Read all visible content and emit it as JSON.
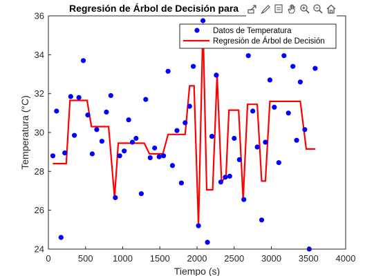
{
  "chart_data": {
    "type": "scatter",
    "title": "Regresión de Árbol de Decisión para",
    "xlabel": "Tiempo (s)",
    "ylabel": "Temperatura (°C)",
    "xlim": [
      0,
      4000
    ],
    "ylim": [
      24,
      36
    ],
    "xticks": [
      0,
      500,
      1000,
      1500,
      2000,
      2500,
      3000,
      3500,
      4000
    ],
    "yticks": [
      24,
      26,
      28,
      30,
      32,
      34,
      36
    ],
    "grid": false,
    "legend_position": "top-right",
    "series": [
      {
        "name": "Datos de Temperatura",
        "kind": "scatter",
        "color": "#0000ff",
        "points": [
          [
            60,
            28.8
          ],
          [
            110,
            31.1
          ],
          [
            170,
            24.6
          ],
          [
            220,
            28.95
          ],
          [
            300,
            31.85
          ],
          [
            350,
            29.85
          ],
          [
            410,
            31.8
          ],
          [
            470,
            33.7
          ],
          [
            530,
            30.9
          ],
          [
            590,
            28.9
          ],
          [
            650,
            30.15
          ],
          [
            720,
            29.55
          ],
          [
            780,
            31.05
          ],
          [
            840,
            31.9
          ],
          [
            900,
            26.65
          ],
          [
            960,
            28.8
          ],
          [
            1020,
            29.05
          ],
          [
            1080,
            30.65
          ],
          [
            1130,
            29.5
          ],
          [
            1180,
            29.7
          ],
          [
            1250,
            26.85
          ],
          [
            1310,
            31.7
          ],
          [
            1370,
            28.7
          ],
          [
            1430,
            29.2
          ],
          [
            1490,
            28.75
          ],
          [
            1550,
            28.8
          ],
          [
            1610,
            33.15
          ],
          [
            1670,
            28.3
          ],
          [
            1730,
            30.1
          ],
          [
            1790,
            27.4
          ],
          [
            1840,
            30.5
          ],
          [
            1900,
            31.35
          ],
          [
            1950,
            33.4
          ],
          [
            2020,
            25.2
          ],
          [
            2080,
            35.75
          ],
          [
            2140,
            24.35
          ],
          [
            2200,
            29.8
          ],
          [
            2260,
            32.95
          ],
          [
            2320,
            27.45
          ],
          [
            2380,
            27.7
          ],
          [
            2440,
            27.75
          ],
          [
            2500,
            29.7
          ],
          [
            2570,
            28.6
          ],
          [
            2630,
            26.55
          ],
          [
            2690,
            33.95
          ],
          [
            2750,
            31.1
          ],
          [
            2810,
            29.25
          ],
          [
            2870,
            25.5
          ],
          [
            2920,
            29.5
          ],
          [
            2980,
            32.7
          ],
          [
            3040,
            31.3
          ],
          [
            3100,
            28.45
          ],
          [
            3170,
            33.95
          ],
          [
            3230,
            31.0
          ],
          [
            3290,
            33.4
          ],
          [
            3340,
            29.6
          ],
          [
            3390,
            32.6
          ],
          [
            3450,
            30.15
          ],
          [
            3510,
            24.0
          ],
          [
            3590,
            33.3
          ]
        ]
      },
      {
        "name": "Regresión de Árbol de Decisión",
        "kind": "line",
        "color": "#ff0000",
        "points": [
          [
            60,
            28.4
          ],
          [
            240,
            28.4
          ],
          [
            290,
            31.65
          ],
          [
            520,
            31.65
          ],
          [
            580,
            30.3
          ],
          [
            810,
            30.3
          ],
          [
            890,
            26.65
          ],
          [
            940,
            29.45
          ],
          [
            1290,
            29.45
          ],
          [
            1360,
            28.9
          ],
          [
            1540,
            28.9
          ],
          [
            1610,
            29.9
          ],
          [
            1840,
            29.9
          ],
          [
            1900,
            32.4
          ],
          [
            1960,
            32.4
          ],
          [
            2020,
            25.2
          ],
          [
            2080,
            35.6
          ],
          [
            2130,
            27.05
          ],
          [
            2210,
            27.05
          ],
          [
            2270,
            32.95
          ],
          [
            2330,
            27.45
          ],
          [
            2390,
            27.75
          ],
          [
            2430,
            31.15
          ],
          [
            2560,
            31.15
          ],
          [
            2620,
            26.55
          ],
          [
            2680,
            31.45
          ],
          [
            2810,
            31.45
          ],
          [
            2870,
            27.5
          ],
          [
            2920,
            27.5
          ],
          [
            2980,
            31.6
          ],
          [
            3390,
            31.6
          ],
          [
            3470,
            29.15
          ],
          [
            3590,
            29.15
          ]
        ]
      }
    ]
  },
  "colors": {
    "scatter": "#0000ff",
    "line": "#ff0000",
    "axes": "#262626",
    "toolbar_icons": "#555555"
  },
  "toolbar": {
    "icons": [
      "export-icon",
      "brush-icon",
      "data-tips-icon",
      "pan-hand-icon",
      "zoom-in-icon",
      "zoom-out-icon",
      "home-icon"
    ]
  }
}
